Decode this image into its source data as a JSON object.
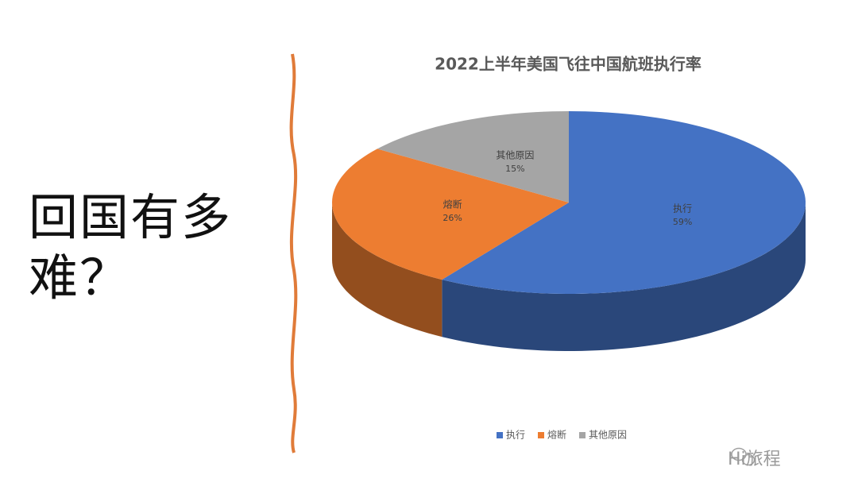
{
  "slide": {
    "heading": "回国有多难？",
    "watermark": "Hi旅程"
  },
  "chart_data": {
    "type": "pie",
    "title": "2022上半年美国飞往中国航班执行率",
    "categories": [
      "执行",
      "熔断",
      "其他原因"
    ],
    "values": [
      59,
      26,
      15
    ],
    "value_labels": [
      "59%",
      "26%",
      "15%"
    ],
    "colors": [
      "#4472c4",
      "#ed7d31",
      "#a5a5a5"
    ],
    "legend": "bottom"
  }
}
